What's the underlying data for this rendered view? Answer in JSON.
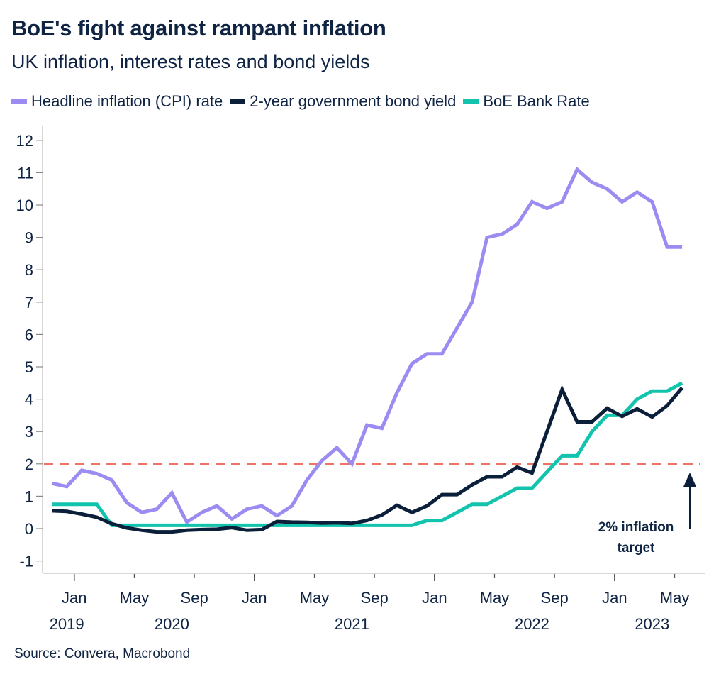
{
  "header": {
    "title": "BoE's fight against rampant inflation",
    "subtitle": "UK inflation, interest rates and bond yields"
  },
  "source": "Source: Convera, Macrobond",
  "colors": {
    "cpi": "#9b8cf2",
    "bond": "#0b1f3a",
    "bank_rate": "#12c4ad",
    "target": "#ec7465",
    "axis": "#cccccc",
    "text": "#0f2343"
  },
  "chart_data": {
    "type": "line",
    "title": "BoE's fight against rampant inflation",
    "subtitle": "UK inflation, interest rates and bond yields",
    "xlabel": "",
    "ylabel": "",
    "ylim": [
      -1,
      12
    ],
    "yticks": [
      "-1",
      "0",
      "1",
      "2",
      "3",
      "4",
      "5",
      "6",
      "7",
      "8",
      "9",
      "10",
      "11",
      "12"
    ],
    "x_start": "2019-11",
    "x_end": "2023-05",
    "x_frequency": "monthly",
    "xticks": [
      {
        "label": "Jan",
        "month": "2020-01",
        "major": true
      },
      {
        "label": "May",
        "month": "2020-05",
        "major": false
      },
      {
        "label": "Sep",
        "month": "2020-09",
        "major": false
      },
      {
        "label": "Jan",
        "month": "2021-01",
        "major": true
      },
      {
        "label": "May",
        "month": "2021-05",
        "major": false
      },
      {
        "label": "Sep",
        "month": "2021-09",
        "major": false
      },
      {
        "label": "Jan",
        "month": "2022-01",
        "major": true
      },
      {
        "label": "May",
        "month": "2022-05",
        "major": false
      },
      {
        "label": "Sep",
        "month": "2022-09",
        "major": false
      },
      {
        "label": "Jan",
        "month": "2023-01",
        "major": true
      },
      {
        "label": "May",
        "month": "2023-05",
        "major": false
      }
    ],
    "year_labels": [
      {
        "label": "2019",
        "month": "2019-12"
      },
      {
        "label": "2020",
        "month": "2020-07"
      },
      {
        "label": "2021",
        "month": "2021-07"
      },
      {
        "label": "2022",
        "month": "2022-07"
      },
      {
        "label": "2023",
        "month": "2023-03"
      }
    ],
    "grid": false,
    "legend_position": "top-left",
    "series": [
      {
        "name": "Headline inflation (CPI) rate",
        "key": "cpi",
        "values": [
          1.4,
          1.3,
          1.8,
          1.7,
          1.5,
          0.8,
          0.5,
          0.6,
          1.1,
          0.2,
          0.5,
          0.7,
          0.3,
          0.6,
          0.7,
          0.4,
          0.7,
          1.5,
          2.1,
          2.5,
          2.0,
          3.2,
          3.1,
          4.2,
          5.1,
          5.4,
          5.4,
          6.2,
          7.0,
          9.0,
          9.1,
          9.4,
          10.1,
          9.9,
          10.1,
          11.1,
          10.7,
          10.5,
          10.1,
          10.4,
          10.1,
          8.7,
          8.7
        ]
      },
      {
        "name": "2-year government bond yield",
        "key": "bond",
        "values": [
          0.55,
          0.53,
          0.45,
          0.35,
          0.15,
          0.02,
          -0.05,
          -0.1,
          -0.1,
          -0.05,
          -0.03,
          -0.02,
          0.03,
          -0.05,
          -0.03,
          0.22,
          0.2,
          0.19,
          0.17,
          0.18,
          0.16,
          0.25,
          0.42,
          0.72,
          0.5,
          0.7,
          1.05,
          1.05,
          1.35,
          1.6,
          1.6,
          1.9,
          1.72,
          3.0,
          4.3,
          3.3,
          3.3,
          3.72,
          3.47,
          3.7,
          3.45,
          3.8,
          4.35
        ]
      },
      {
        "name": "BoE Bank Rate",
        "key": "bank_rate",
        "values": [
          0.75,
          0.75,
          0.75,
          0.75,
          0.1,
          0.1,
          0.1,
          0.1,
          0.1,
          0.1,
          0.1,
          0.1,
          0.1,
          0.1,
          0.1,
          0.1,
          0.1,
          0.1,
          0.1,
          0.1,
          0.1,
          0.1,
          0.1,
          0.1,
          0.1,
          0.25,
          0.25,
          0.5,
          0.75,
          0.75,
          1.0,
          1.25,
          1.25,
          1.75,
          2.25,
          2.25,
          3.0,
          3.5,
          3.5,
          4.0,
          4.25,
          4.25,
          4.5
        ]
      }
    ],
    "reference_lines": [
      {
        "name": "2% inflation target",
        "value": 2,
        "style": "dashed",
        "key": "target"
      }
    ],
    "annotations": [
      {
        "text_line1": "2% inflation",
        "text_line2": "target",
        "points_to": "2% inflation target line",
        "month": "2023-05"
      }
    ]
  }
}
